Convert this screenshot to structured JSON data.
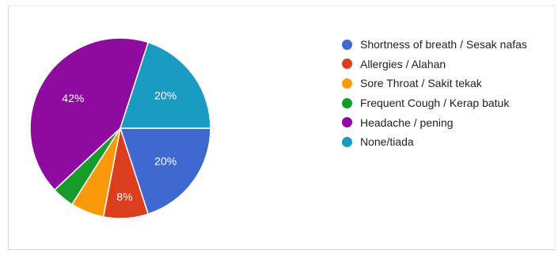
{
  "chart_data": {
    "type": "pie",
    "legend_position": "right",
    "slices": [
      {
        "label": "Shortness of breath / Sesak nafas",
        "value": 20,
        "color": "#3f69d1",
        "display": "20%"
      },
      {
        "label": "Allergies / Alahan",
        "value": 8,
        "color": "#dc3d1d",
        "display": "8%"
      },
      {
        "label": "Sore Throat / Sakit tekak",
        "value": 6,
        "color": "#fa9a0a",
        "display": ""
      },
      {
        "label": "Frequent Cough / Kerap batuk",
        "value": 4,
        "color": "#169a2a",
        "display": ""
      },
      {
        "label": "Headache / pening",
        "value": 42,
        "color": "#8f0a9e",
        "display": "42%"
      },
      {
        "label": "None/tiada",
        "value": 20,
        "color": "#1a9bc2",
        "display": "20%"
      }
    ]
  }
}
